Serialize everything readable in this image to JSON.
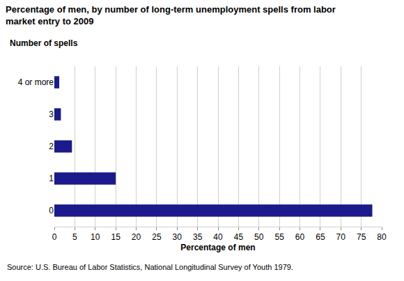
{
  "chart_data": {
    "type": "bar",
    "title": "Percentage of men, by number of long-term unemployment spells from labor market entry to 2009",
    "y_label": "Number of spells",
    "x_label": "Percentage of men",
    "source": "Source: U.S. Bureau of Labor Statistics, National Longitudinal Survey of Youth 1979.",
    "orientation": "horizontal",
    "categories": [
      "0",
      "1",
      "2",
      "3",
      "4 or more"
    ],
    "values": [
      77.7,
      15.0,
      4.3,
      1.6,
      1.2
    ],
    "color": "#1a1a8c",
    "xlim": [
      0,
      80
    ],
    "xticks": [
      0,
      5,
      10,
      15,
      20,
      25,
      30,
      35,
      40,
      45,
      50,
      55,
      60,
      65,
      70,
      75,
      80
    ],
    "grid": true
  }
}
